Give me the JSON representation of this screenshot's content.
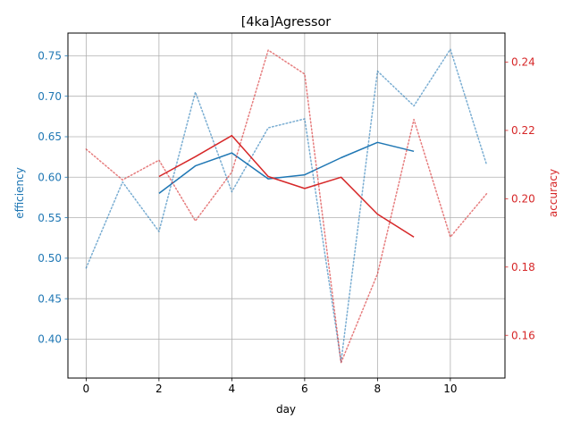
{
  "chart_data": {
    "type": "line",
    "title": "[4ka]Agressor",
    "xlabel": "day",
    "ylabel_left": "efficiency",
    "ylabel_right": "accuracy",
    "xlim": [
      -0.5,
      11.5
    ],
    "ylim_left": [
      0.352,
      0.778
    ],
    "ylim_right": [
      0.1475,
      0.2485
    ],
    "x_ticks": [
      0,
      2,
      4,
      6,
      8,
      10
    ],
    "y_ticks_left": [
      0.4,
      0.45,
      0.5,
      0.55,
      0.6,
      0.65,
      0.7,
      0.75
    ],
    "y_ticks_right": [
      0.16,
      0.18,
      0.2,
      0.22,
      0.24
    ],
    "grid": true,
    "colors": {
      "left": "#1f77b4",
      "right": "#d62728"
    },
    "series": [
      {
        "axis": "left",
        "style": "dotted",
        "x": [
          0,
          1,
          2,
          3,
          4,
          5,
          6,
          7,
          8,
          9,
          10,
          11
        ],
        "values": [
          0.488,
          0.594,
          0.533,
          0.705,
          0.582,
          0.661,
          0.672,
          0.372,
          0.731,
          0.688,
          0.758,
          0.615
        ]
      },
      {
        "axis": "left",
        "style": "solid",
        "x": [
          2,
          3,
          4,
          5,
          6,
          7,
          8,
          9
        ],
        "values": [
          0.58,
          0.614,
          0.63,
          0.598,
          0.603,
          0.624,
          0.643,
          0.632
        ]
      },
      {
        "axis": "right",
        "style": "dotted",
        "x": [
          0,
          1,
          2,
          3,
          4,
          5,
          6,
          7,
          8,
          9,
          10,
          11
        ],
        "values": [
          0.2145,
          0.2055,
          0.2113,
          0.1935,
          0.2078,
          0.2435,
          0.2365,
          0.152,
          0.178,
          0.2232,
          0.1888,
          0.2015
        ]
      },
      {
        "axis": "right",
        "style": "solid",
        "x": [
          2,
          3,
          4,
          5,
          6,
          7,
          8,
          9
        ],
        "values": [
          0.2065,
          0.2123,
          0.2185,
          0.2065,
          0.203,
          0.2063,
          0.1955,
          0.1888
        ]
      }
    ]
  }
}
